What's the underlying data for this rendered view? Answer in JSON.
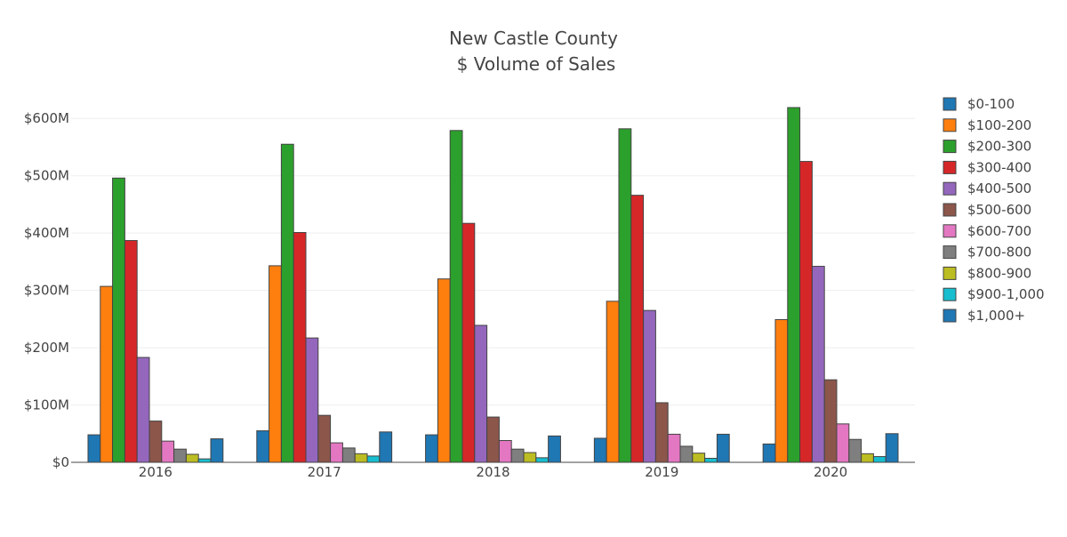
{
  "chart_data": {
    "type": "bar",
    "title_line1": "New Castle County",
    "title_line2": "$ Volume of Sales",
    "xlabel": "",
    "ylabel": "",
    "categories": [
      "2016",
      "2017",
      "2018",
      "2019",
      "2020"
    ],
    "ylim": [
      0,
      650
    ],
    "y_unit": "$M",
    "y_ticks": [
      0,
      100,
      200,
      300,
      400,
      500,
      600
    ],
    "y_tick_labels": [
      "$0",
      "$100M",
      "$200M",
      "$300M",
      "$400M",
      "$500M",
      "$600M"
    ],
    "grid": true,
    "legend_position": "right",
    "series": [
      {
        "name": "$0-100",
        "color": "#1f77b4",
        "values": [
          48,
          55,
          48,
          42,
          32
        ]
      },
      {
        "name": "$100-200",
        "color": "#ff7f0e",
        "values": [
          307,
          343,
          320,
          281,
          249
        ]
      },
      {
        "name": "$200-300",
        "color": "#2ca02c",
        "values": [
          496,
          555,
          579,
          582,
          619
        ]
      },
      {
        "name": "$300-400",
        "color": "#d62728",
        "values": [
          387,
          401,
          417,
          466,
          525
        ]
      },
      {
        "name": "$400-500",
        "color": "#9467bd",
        "values": [
          183,
          217,
          239,
          265,
          342
        ]
      },
      {
        "name": "$500-600",
        "color": "#8c564b",
        "values": [
          72,
          82,
          79,
          104,
          144
        ]
      },
      {
        "name": "$600-700",
        "color": "#e377c2",
        "values": [
          37,
          34,
          38,
          49,
          67
        ]
      },
      {
        "name": "$700-800",
        "color": "#7f7f7f",
        "values": [
          23,
          25,
          23,
          28,
          40
        ]
      },
      {
        "name": "$800-900",
        "color": "#bcbd22",
        "values": [
          14,
          15,
          17,
          16,
          15
        ]
      },
      {
        "name": "$900-1,000",
        "color": "#17becf",
        "values": [
          6,
          11,
          8,
          7,
          10
        ]
      },
      {
        "name": "$1,000+",
        "color": "#1f77b4",
        "values": [
          41,
          53,
          46,
          49,
          50
        ]
      }
    ]
  }
}
